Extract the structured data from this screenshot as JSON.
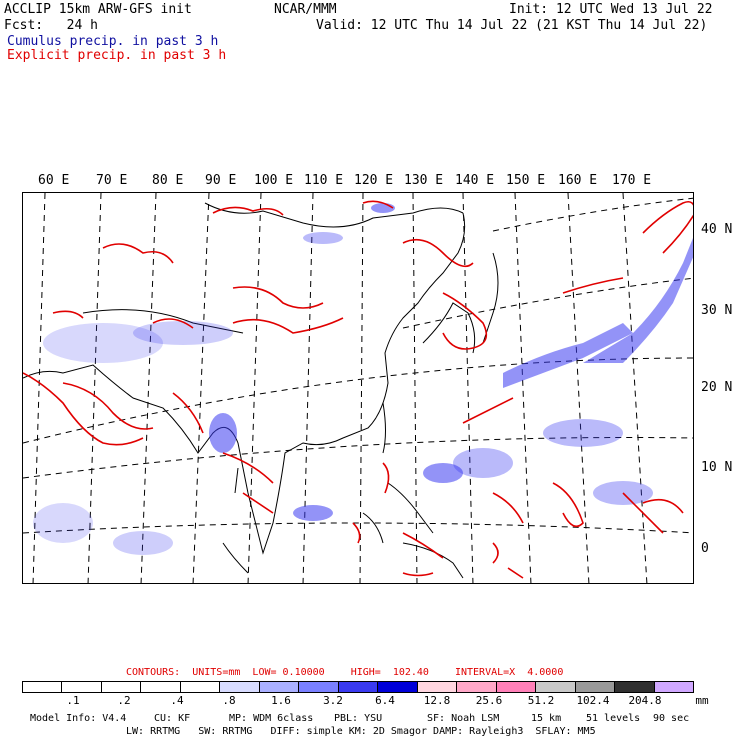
{
  "header": {
    "line1_left": "ACCLIP 15km ARW-GFS init",
    "line1_center": "NCAR/MMM",
    "line1_right": "Init: 12 UTC Wed 13 Jul 22",
    "line2_left": "Fcst:   24 h",
    "line2_right": "Valid: 12 UTC Thu 14 Jul 22 (21 KST Thu 14 Jul 22)",
    "line3": "Cumulus precip. in past 3 h",
    "line4": "Explicit precip. in past 3 h"
  },
  "map": {
    "lon_labels": [
      "60 E",
      "70 E",
      "80 E",
      "90 E",
      "100 E",
      "110 E",
      "120 E",
      "130 E",
      "140 E",
      "150 E",
      "160 E",
      "170 E"
    ],
    "lat_labels": [
      "40 N",
      "30 N",
      "20 N",
      "10 N",
      "0"
    ],
    "colors": {
      "cumulus": "#3a3af0",
      "explicit": "#e00000",
      "coast": "#000000",
      "grid": "#000000"
    }
  },
  "contours": {
    "label": "CONTOURS:  UNITS=mm  LOW= 0.10000",
    "high": "HIGH=  102.40",
    "interval": "INTERVAL=X  4.0000"
  },
  "legend": {
    "colors": [
      "#ffffff",
      "#ffffff",
      "#ffffff",
      "#ffffff",
      "#ffffff",
      "#d8dcff",
      "#aab0ff",
      "#7a80ff",
      "#3a3af0",
      "#0000d8",
      "#ffd6e0",
      "#ffa8c8",
      "#ff80b8",
      "#c8c8c8",
      "#9a9a9a",
      "#303030",
      "#d0a8ff"
    ],
    "ticks": [
      ".1",
      ".2",
      ".4",
      ".8",
      "1.6",
      "3.2",
      "6.4",
      "12.8",
      "25.6",
      "51.2",
      "102.4",
      "204.8"
    ],
    "unit": "mm"
  },
  "footer": {
    "line1": [
      "Model Info: V4.4",
      "CU: KF",
      "MP: WDM 6class",
      "PBL: YSU",
      "SF: Noah LSM",
      "15 km",
      "51 levels",
      "90 sec"
    ],
    "line2": "LW: RRTMG   SW: RRTMG   DIFF: simple KM: 2D Smagor DAMP: Rayleigh3  SFLAY: MM5"
  }
}
